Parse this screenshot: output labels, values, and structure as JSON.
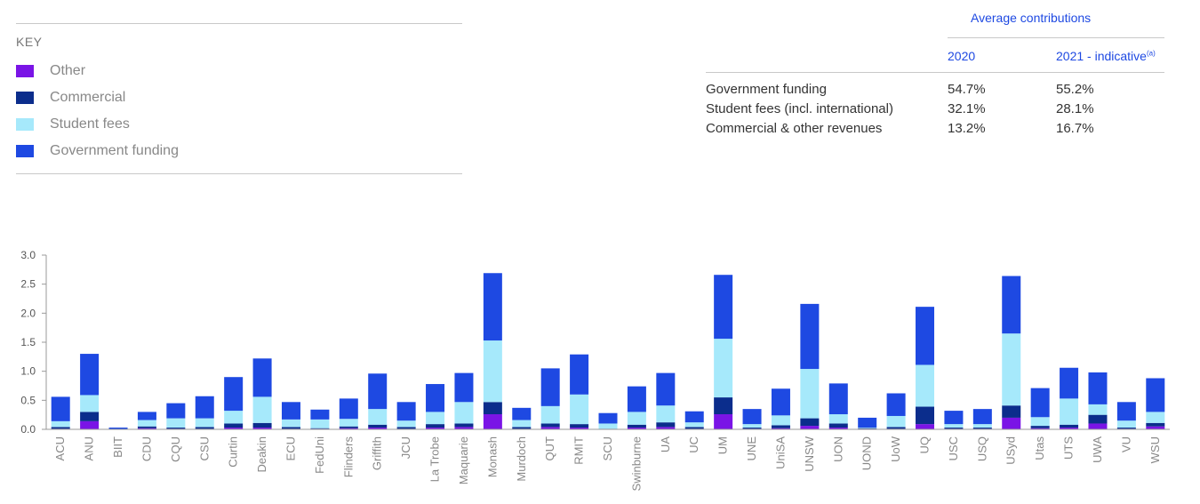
{
  "key": {
    "title": "KEY",
    "items": [
      {
        "label": "Other",
        "color": "#7a14e6"
      },
      {
        "label": "Commercial",
        "color": "#0b2d8c"
      },
      {
        "label": "Student fees",
        "color": "#a6e9fb"
      },
      {
        "label": "Government funding",
        "color": "#1e49e2"
      }
    ]
  },
  "contributions": {
    "title": "Average contributions",
    "col1": "2020",
    "col2": "2021 - indicative",
    "col2_note": "(a)",
    "rows": [
      {
        "label": "Government funding",
        "v2020": "54.7%",
        "v2021": "55.2%"
      },
      {
        "label": "Student fees (incl. international)",
        "v2020": "32.1%",
        "v2021": "28.1%"
      },
      {
        "label": "Commercial & other revenues",
        "v2020": "13.2%",
        "v2021": "16.7%"
      }
    ]
  },
  "chart_data": {
    "type": "bar",
    "stacked": true,
    "ylim": [
      0,
      3.0
    ],
    "yticks": [
      "0.0",
      "0.5",
      "1.0",
      "1.5",
      "2.0",
      "2.5",
      "3.0"
    ],
    "categories": [
      "ACU",
      "ANU",
      "BIIT",
      "CDU",
      "CQU",
      "CSU",
      "Curtin",
      "Deakin",
      "ECU",
      "FedUni",
      "Flinders",
      "Griffith",
      "JCU",
      "La Trobe",
      "Maquarie",
      "Monash",
      "Murdoch",
      "QUT",
      "RMIT",
      "SCU",
      "Swinburne",
      "UA",
      "UC",
      "UM",
      "UNE",
      "UniSA",
      "UNSW",
      "UON",
      "UOND",
      "UoW",
      "UQ",
      "USC",
      "USQ",
      "USyd",
      "Utas",
      "UTS",
      "UWA",
      "VU",
      "WSU"
    ],
    "series": [
      {
        "name": "Other",
        "color": "#7a14e6",
        "values": [
          0.01,
          0.14,
          0.0,
          0.02,
          0.01,
          0.01,
          0.03,
          0.03,
          0.01,
          0.01,
          0.02,
          0.03,
          0.01,
          0.03,
          0.04,
          0.26,
          0.01,
          0.04,
          0.03,
          0.0,
          0.03,
          0.04,
          0.01,
          0.26,
          0.01,
          0.02,
          0.06,
          0.03,
          0.01,
          0.01,
          0.09,
          0.01,
          0.01,
          0.2,
          0.02,
          0.03,
          0.1,
          0.01,
          0.05
        ]
      },
      {
        "name": "Commercial",
        "color": "#0b2d8c",
        "values": [
          0.03,
          0.16,
          0.0,
          0.03,
          0.02,
          0.03,
          0.07,
          0.08,
          0.03,
          0.01,
          0.03,
          0.05,
          0.03,
          0.06,
          0.06,
          0.21,
          0.03,
          0.06,
          0.06,
          0.01,
          0.05,
          0.08,
          0.03,
          0.29,
          0.02,
          0.05,
          0.13,
          0.07,
          0.01,
          0.03,
          0.3,
          0.02,
          0.02,
          0.21,
          0.04,
          0.05,
          0.15,
          0.02,
          0.06
        ]
      },
      {
        "name": "Student fees",
        "color": "#a6e9fb",
        "values": [
          0.1,
          0.29,
          0.0,
          0.11,
          0.16,
          0.15,
          0.22,
          0.45,
          0.13,
          0.15,
          0.13,
          0.27,
          0.11,
          0.21,
          0.37,
          1.06,
          0.12,
          0.3,
          0.51,
          0.09,
          0.22,
          0.29,
          0.08,
          1.01,
          0.06,
          0.17,
          0.85,
          0.16,
          0.01,
          0.19,
          0.72,
          0.06,
          0.06,
          1.24,
          0.15,
          0.45,
          0.18,
          0.12,
          0.19
        ]
      },
      {
        "name": "Government funding",
        "color": "#1e49e2",
        "values": [
          0.42,
          0.71,
          0.03,
          0.14,
          0.26,
          0.38,
          0.58,
          0.66,
          0.3,
          0.17,
          0.35,
          0.61,
          0.32,
          0.48,
          0.5,
          1.16,
          0.21,
          0.65,
          0.69,
          0.18,
          0.44,
          0.56,
          0.19,
          1.1,
          0.26,
          0.46,
          1.12,
          0.53,
          0.17,
          0.39,
          1.0,
          0.23,
          0.26,
          0.99,
          0.5,
          0.53,
          0.55,
          0.32,
          0.58
        ]
      }
    ]
  }
}
